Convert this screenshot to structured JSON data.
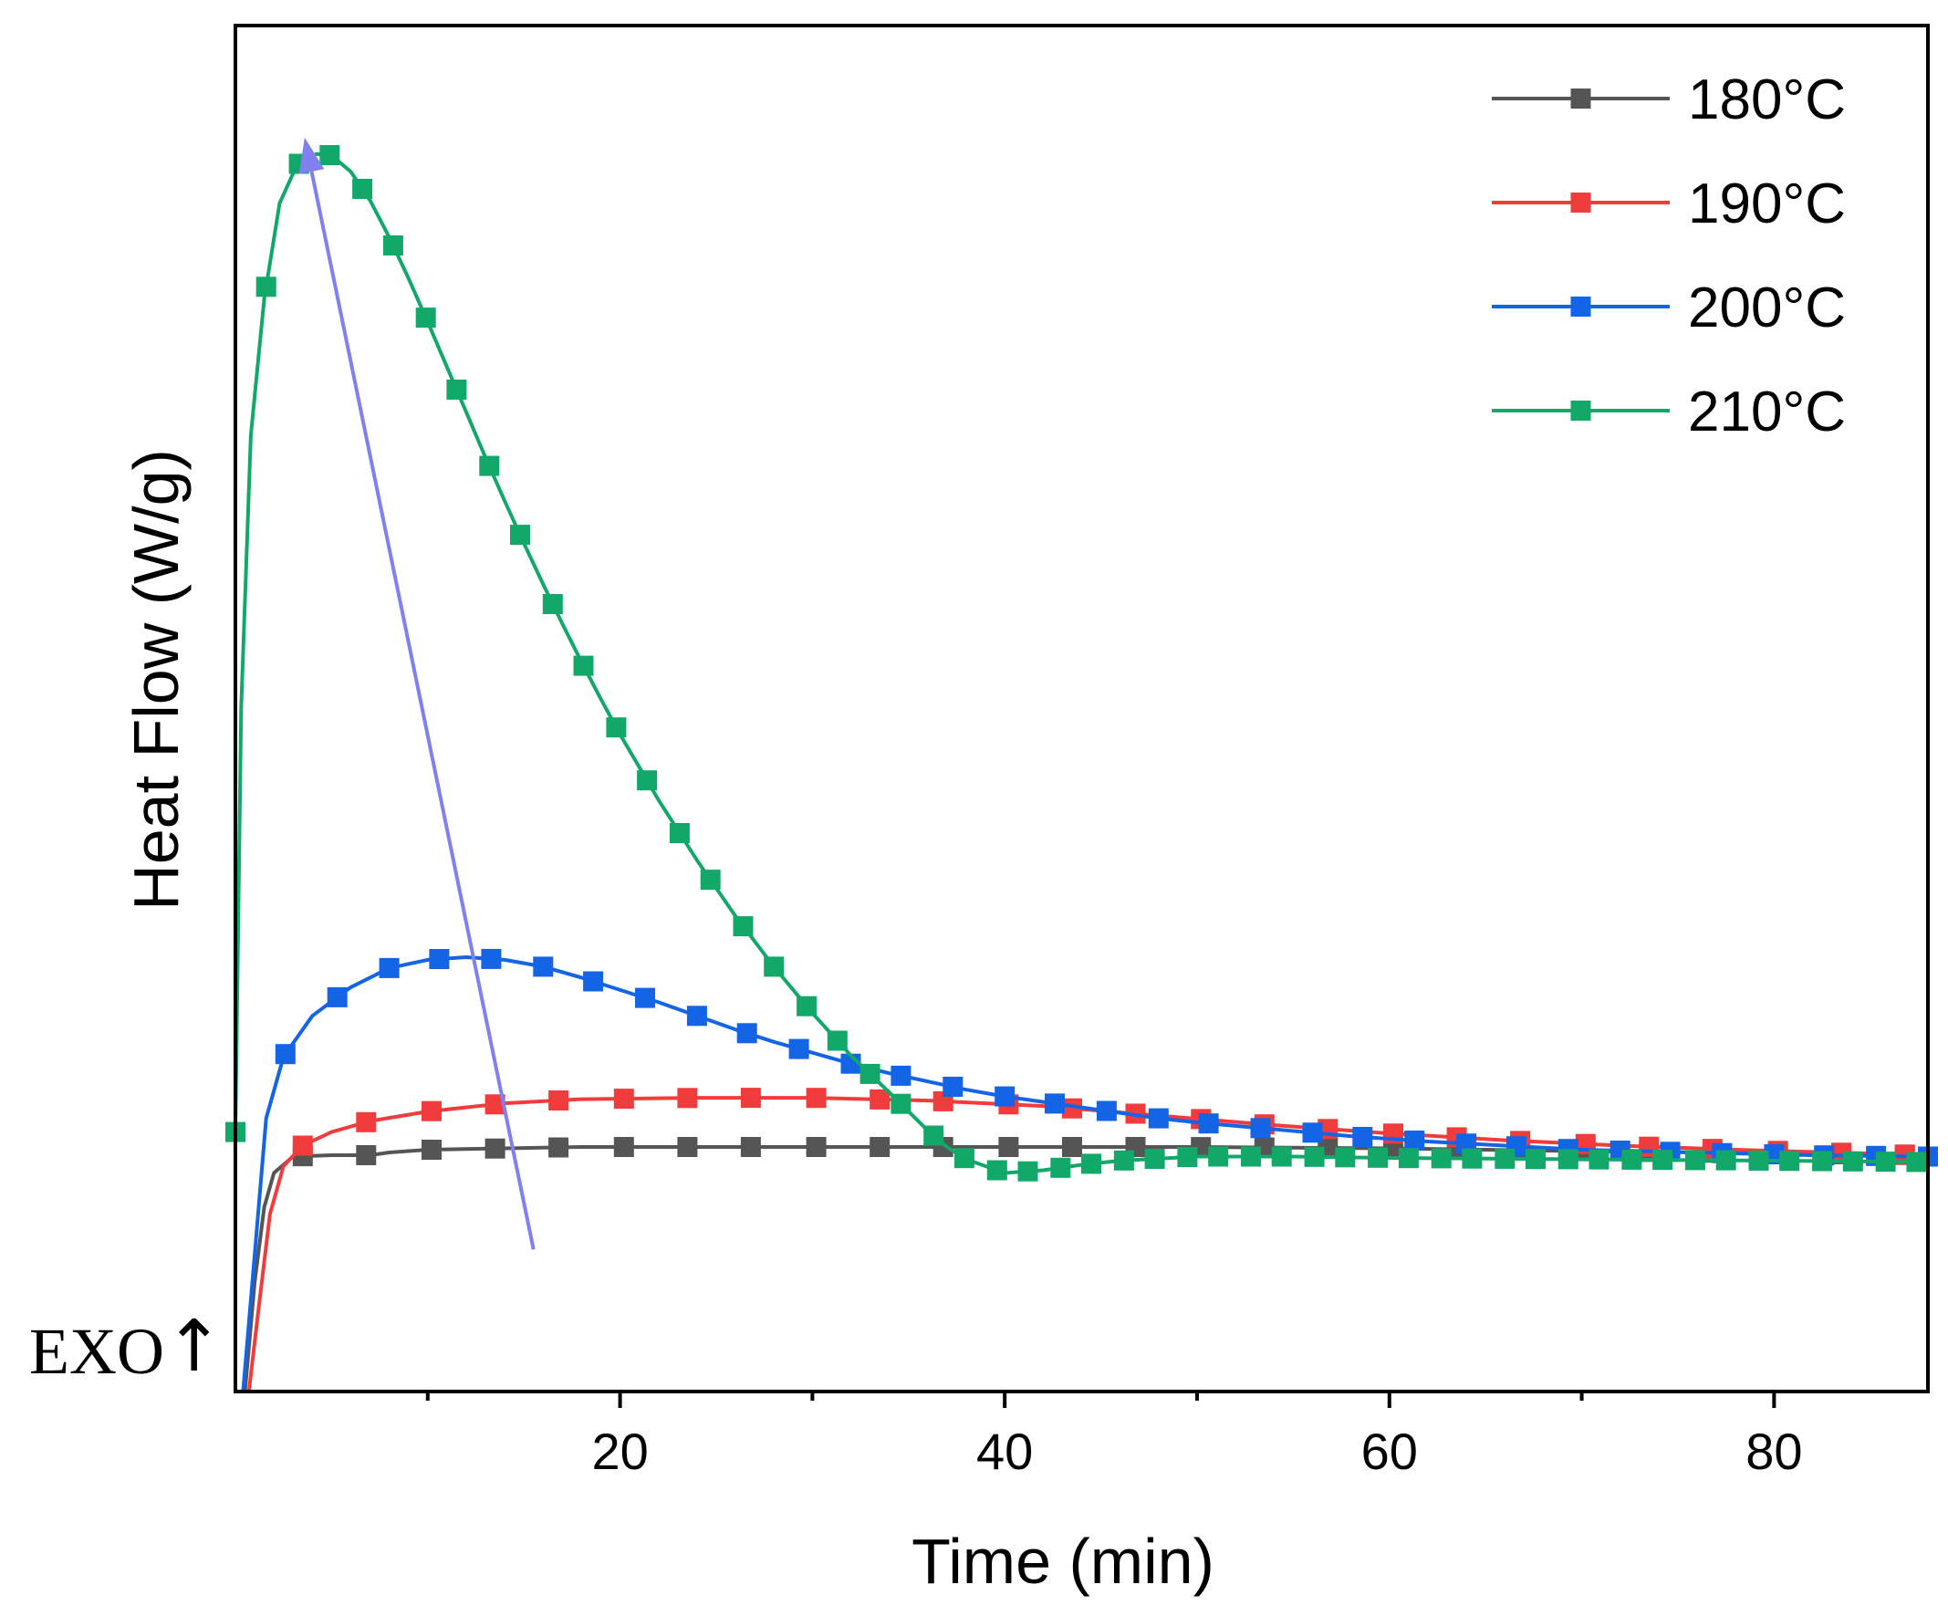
{
  "chart_data": {
    "type": "line",
    "title": "",
    "xlabel": "Time (min)",
    "ylabel": "Heat Flow (W/g)",
    "annotation": "EXO",
    "annotation_arrow": "↑",
    "xlim": [
      0,
      88
    ],
    "ylim": [
      0,
      1.0
    ],
    "x_major_ticks": [
      20,
      40,
      60,
      80
    ],
    "x_tick_labels": [
      "20",
      "40",
      "60",
      "80"
    ],
    "x_minor_ticks": [
      10,
      30,
      50,
      70
    ],
    "y_ticks_shown": false,
    "grid": false,
    "legend_position": "top-right",
    "colors": {
      "axis": "#000000",
      "trend_arrow": "#8080f0"
    },
    "trend_arrow": {
      "from": {
        "x": 15.5,
        "y": 0.104
      },
      "to": {
        "x": 3.6,
        "y": 0.918
      }
    },
    "series": [
      {
        "name": "180°C",
        "color": "#555555",
        "points": [
          [
            0.5,
            0.0
          ],
          [
            1.0,
            0.08
          ],
          [
            1.5,
            0.135
          ],
          [
            2.0,
            0.16
          ],
          [
            3.0,
            0.172
          ],
          [
            5,
            0.173
          ],
          [
            7,
            0.173
          ],
          [
            8,
            0.175
          ],
          [
            10,
            0.177
          ],
          [
            14,
            0.178
          ],
          [
            18,
            0.179
          ],
          [
            30,
            0.179
          ],
          [
            50,
            0.179
          ],
          [
            60,
            0.178
          ],
          [
            70,
            0.176
          ],
          [
            88,
            0.173
          ]
        ],
        "markers": [
          3.5,
          6.8,
          10.2,
          13.5,
          16.8,
          20.2,
          23.5,
          26.8,
          30.2,
          33.5,
          36.8,
          40.2,
          43.5,
          46.8,
          50.2,
          53.5,
          56.8,
          60.2,
          63.5,
          66.8,
          70.2,
          73.5,
          76.8,
          80.2,
          83.5,
          86.8
        ]
      },
      {
        "name": "190°C",
        "color": "#f03c3c",
        "points": [
          [
            0.7,
            0.0
          ],
          [
            1.2,
            0.06
          ],
          [
            1.8,
            0.13
          ],
          [
            2.5,
            0.165
          ],
          [
            3.5,
            0.18
          ],
          [
            5,
            0.19
          ],
          [
            7,
            0.198
          ],
          [
            10,
            0.205
          ],
          [
            14,
            0.211
          ],
          [
            18,
            0.214
          ],
          [
            24,
            0.215
          ],
          [
            30,
            0.215
          ],
          [
            36,
            0.213
          ],
          [
            42,
            0.209
          ],
          [
            48,
            0.202
          ],
          [
            54,
            0.195
          ],
          [
            60,
            0.189
          ],
          [
            66,
            0.184
          ],
          [
            72,
            0.18
          ],
          [
            78,
            0.177
          ],
          [
            88,
            0.173
          ]
        ],
        "markers": [
          3.5,
          6.8,
          10.2,
          13.5,
          16.8,
          20.2,
          23.5,
          26.8,
          30.2,
          33.5,
          36.8,
          40.2,
          43.5,
          46.8,
          50.2,
          53.5,
          56.8,
          60.2,
          63.5,
          66.8,
          70.2,
          73.5,
          76.8,
          80.2,
          83.5,
          86.8
        ]
      },
      {
        "name": "200°C",
        "color": "#1464e6",
        "points": [
          [
            0.4,
            0.0
          ],
          [
            1.0,
            0.1
          ],
          [
            1.6,
            0.2
          ],
          [
            2.5,
            0.245
          ],
          [
            4,
            0.275
          ],
          [
            6,
            0.296
          ],
          [
            8,
            0.31
          ],
          [
            10,
            0.316
          ],
          [
            12,
            0.318
          ],
          [
            14,
            0.316
          ],
          [
            16,
            0.311
          ],
          [
            18,
            0.303
          ],
          [
            20,
            0.294
          ],
          [
            22,
            0.285
          ],
          [
            24,
            0.275
          ],
          [
            26,
            0.265
          ],
          [
            28,
            0.256
          ],
          [
            30,
            0.248
          ],
          [
            32,
            0.24
          ],
          [
            34,
            0.233
          ],
          [
            36,
            0.227
          ],
          [
            38,
            0.221
          ],
          [
            40,
            0.216
          ],
          [
            42,
            0.212
          ],
          [
            44,
            0.208
          ],
          [
            46,
            0.204
          ],
          [
            48,
            0.2
          ],
          [
            50,
            0.197
          ],
          [
            54,
            0.192
          ],
          [
            58,
            0.187
          ],
          [
            62,
            0.183
          ],
          [
            66,
            0.18
          ],
          [
            70,
            0.177
          ],
          [
            76,
            0.175
          ],
          [
            82,
            0.173
          ],
          [
            88,
            0.172
          ]
        ],
        "markers": [
          2.6,
          5.3,
          8.0,
          10.6,
          13.3,
          16.0,
          18.6,
          21.3,
          24.0,
          26.6,
          29.3,
          32.0,
          34.6,
          37.3,
          40.0,
          42.6,
          45.3,
          48.0,
          50.6,
          53.3,
          56.0,
          58.6,
          61.3,
          64.0,
          66.6,
          69.3,
          72.0,
          74.6,
          77.3,
          80.0,
          82.6,
          85.3,
          88.0
        ]
      },
      {
        "name": "210°C",
        "color": "#12a86a",
        "points": [
          [
            0,
            0.19
          ],
          [
            0.3,
            0.5
          ],
          [
            0.8,
            0.7
          ],
          [
            1.5,
            0.8
          ],
          [
            2.3,
            0.87
          ],
          [
            3.2,
            0.898
          ],
          [
            4.2,
            0.906
          ],
          [
            5.0,
            0.905
          ],
          [
            6,
            0.893
          ],
          [
            7,
            0.872
          ],
          [
            8,
            0.845
          ],
          [
            9,
            0.815
          ],
          [
            10,
            0.783
          ],
          [
            11,
            0.75
          ],
          [
            12,
            0.717
          ],
          [
            13,
            0.684
          ],
          [
            14,
            0.652
          ],
          [
            15,
            0.621
          ],
          [
            16,
            0.591
          ],
          [
            17,
            0.562
          ],
          [
            18,
            0.534
          ],
          [
            19,
            0.507
          ],
          [
            20,
            0.481
          ],
          [
            22,
            0.433
          ],
          [
            24,
            0.389
          ],
          [
            26,
            0.348
          ],
          [
            28,
            0.311
          ],
          [
            30,
            0.277
          ],
          [
            32,
            0.246
          ],
          [
            34,
            0.219
          ],
          [
            35,
            0.205
          ],
          [
            36,
            0.191
          ],
          [
            37,
            0.179
          ],
          [
            38,
            0.17
          ],
          [
            40,
            0.16
          ],
          [
            42,
            0.162
          ],
          [
            44,
            0.166
          ],
          [
            46,
            0.169
          ],
          [
            50,
            0.172
          ],
          [
            55,
            0.172
          ],
          [
            60,
            0.171
          ],
          [
            70,
            0.17
          ],
          [
            80,
            0.169
          ],
          [
            88,
            0.168
          ]
        ],
        "markers": [
          0.0,
          1.6,
          3.3,
          4.9,
          6.6,
          8.2,
          9.9,
          11.5,
          13.2,
          14.8,
          16.5,
          18.1,
          19.8,
          21.4,
          23.1,
          24.7,
          26.4,
          28.0,
          29.7,
          31.3,
          33.0,
          34.6,
          36.3,
          37.9,
          39.6,
          41.2,
          42.9,
          44.5,
          46.2,
          47.8,
          49.5,
          51.1,
          52.8,
          54.4,
          56.1,
          57.7,
          59.4,
          61.0,
          62.7,
          64.3,
          66.0,
          67.6,
          69.3,
          70.9,
          72.6,
          74.2,
          75.9,
          77.5,
          79.2,
          80.8,
          82.5,
          84.1,
          85.8,
          87.4
        ]
      }
    ]
  }
}
